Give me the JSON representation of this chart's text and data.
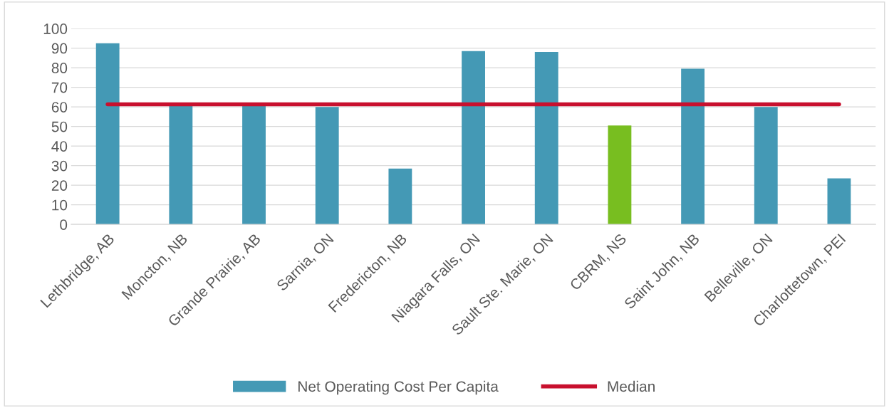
{
  "chart_data": {
    "type": "bar",
    "categories": [
      "Lethbridge, AB",
      "Moncton, NB",
      "Grande Prairie, AB",
      "Sarnia, ON",
      "Fredericton, NB",
      "Niagara Falls, ON",
      "Sault Ste. Marie, ON",
      "CBRM, NS",
      "Saint John, NB",
      "Belleville, ON",
      "Charlottetown, PEI"
    ],
    "series": [
      {
        "name": "Net Operating Cost Per Capita",
        "color": "#4499b5",
        "colors": [
          "#4499b5",
          "#4499b5",
          "#4499b5",
          "#4499b5",
          "#4499b5",
          "#4499b5",
          "#4499b5",
          "#78be20",
          "#4499b5",
          "#4499b5",
          "#4499b5"
        ],
        "values": [
          92.5,
          61,
          61,
          60,
          28.5,
          88.5,
          88,
          50.5,
          79.5,
          60,
          23.5
        ]
      },
      {
        "name": "Median",
        "type": "line",
        "color": "#c8102e",
        "values": [
          61.3,
          61.3,
          61.3,
          61.3,
          61.3,
          61.3,
          61.3,
          61.3,
          61.3,
          61.3,
          61.3
        ]
      }
    ],
    "ylim": [
      0,
      100
    ],
    "yticks": [
      0,
      10,
      20,
      30,
      40,
      50,
      60,
      70,
      80,
      90,
      100
    ],
    "grid": "y",
    "legend": "bottom"
  }
}
